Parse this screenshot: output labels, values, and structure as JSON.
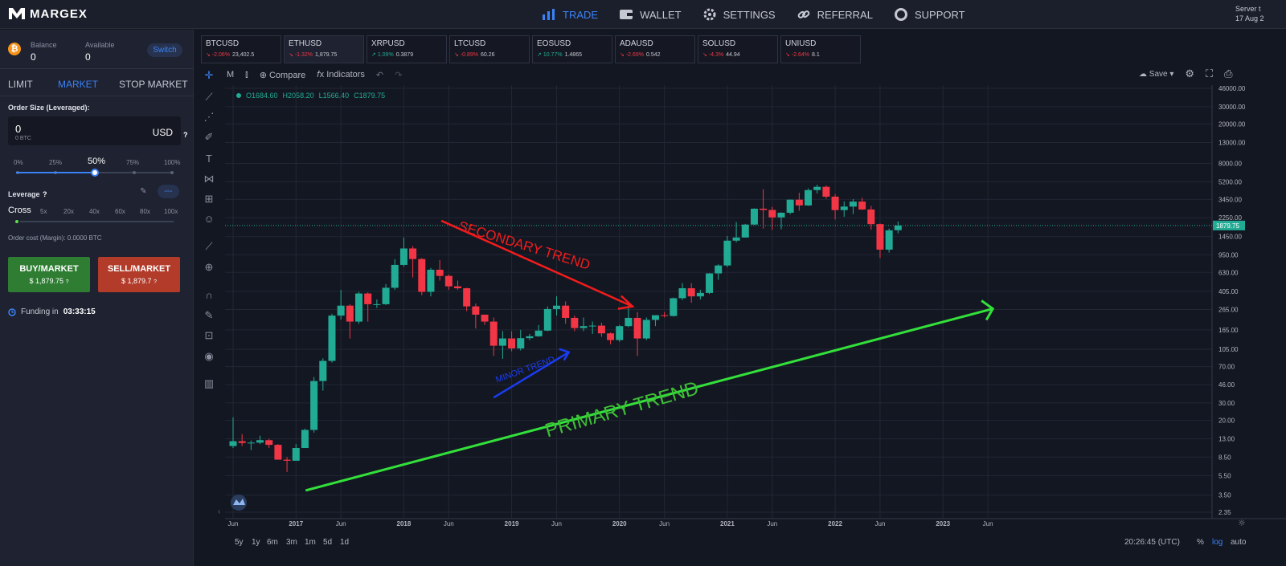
{
  "brand": {
    "name": "MARGEX"
  },
  "nav": [
    {
      "label": "TRADE",
      "icon": "bar-chart-icon",
      "active": true
    },
    {
      "label": "WALLET",
      "icon": "wallet-icon"
    },
    {
      "label": "SETTINGS",
      "icon": "gear-icon"
    },
    {
      "label": "REFERRAL",
      "icon": "link-icon"
    },
    {
      "label": "SUPPORT",
      "icon": "lifebuoy-icon"
    }
  ],
  "server": {
    "label": "Server t",
    "date": "17 Aug 2"
  },
  "account": {
    "balance_label": "Balance",
    "balance": "0",
    "available_label": "Available",
    "available": "0",
    "switch_label": "Switch"
  },
  "order_types": [
    "LIMIT",
    "MARKET",
    "STOP MARKET"
  ],
  "order_size": {
    "label": "Order Size (Leveraged):",
    "value": "0",
    "sub": "0 BTC",
    "currency": "USD",
    "help": "?"
  },
  "percent_options": [
    "0%",
    "25%",
    "50%",
    "75%",
    "100%"
  ],
  "percent_selected": "50%",
  "percent_value": 0.5,
  "leverage": {
    "label": "Leverage",
    "help": "?",
    "options": [
      "Cross",
      "5x",
      "20x",
      "40x",
      "60x",
      "80x",
      "100x"
    ],
    "selected": "Cross"
  },
  "order_cost": "Order cost (Margin): 0.0000 BTC",
  "buy": {
    "label": "BUY/MARKET",
    "price": "$ 1,879.75",
    "help": "?"
  },
  "sell": {
    "label": "SELL/MARKET",
    "price": "$ 1,879.7",
    "help": "?"
  },
  "funding": {
    "label": "Funding in",
    "time": "03:33:15"
  },
  "tickers": [
    {
      "symbol": "BTCUSD",
      "change": "-2.06%",
      "price": "23,402.5",
      "dir": "down"
    },
    {
      "symbol": "ETHUSD",
      "change": "-1.32%",
      "price": "1,879.75",
      "dir": "down",
      "active": true
    },
    {
      "symbol": "XRPUSD",
      "change": "1.09%",
      "price": "0.3879",
      "dir": "up"
    },
    {
      "symbol": "LTCUSD",
      "change": "-0.89%",
      "price": "60.26",
      "dir": "down"
    },
    {
      "symbol": "EOSUSD",
      "change": "10.77%",
      "price": "1.4865",
      "dir": "up"
    },
    {
      "symbol": "ADAUSD",
      "change": "-2.69%",
      "price": "0.542",
      "dir": "down"
    },
    {
      "symbol": "SOLUSD",
      "change": "-4.3%",
      "price": "44.94",
      "dir": "down"
    },
    {
      "symbol": "UNIUSD",
      "change": "-2.64%",
      "price": "8.1",
      "dir": "down"
    }
  ],
  "chart_toolbar": {
    "interval": "M",
    "compare": "Compare",
    "indicators": "Indicators",
    "save": "Save"
  },
  "ohlc": {
    "o": "O1684.60",
    "h": "H2058.20",
    "l": "L1566.40",
    "c": "C1879.75"
  },
  "ranges": [
    "5y",
    "1y",
    "6m",
    "3m",
    "1m",
    "5d",
    "1d"
  ],
  "clock": "20:26:45 (UTC)",
  "scale_opts": [
    "%",
    "log",
    "auto"
  ],
  "colors": {
    "up": "#22ab94",
    "down": "#f23645",
    "accent": "#3b82f6",
    "primary": "#33e03a",
    "secondary": "#f21c1c",
    "minor": "#1b3cf0"
  },
  "chart_data": {
    "type": "candlestick",
    "symbol": "ETHUSD",
    "interval": "1M",
    "scale": "log",
    "last_price": "1879.75",
    "y_ticks": [
      "46000.00",
      "30000.00",
      "20000.00",
      "13000.00",
      "8000.00",
      "5200.00",
      "3450.00",
      "2250.00",
      "1450.00",
      "950.00",
      "630.00",
      "405.00",
      "265.00",
      "165.00",
      "105.00",
      "70.00",
      "46.00",
      "30.00",
      "20.00",
      "13.00",
      "8.50",
      "5.50",
      "3.50",
      "2.35"
    ],
    "x_ticks": [
      {
        "label": "Jun",
        "x": "2016-06"
      },
      {
        "label": "2017",
        "x": "2017-01"
      },
      {
        "label": "Jun",
        "x": "2017-06"
      },
      {
        "label": "2018",
        "x": "2018-01"
      },
      {
        "label": "Jun",
        "x": "2018-06"
      },
      {
        "label": "2019",
        "x": "2019-01"
      },
      {
        "label": "Jun",
        "x": "2019-06"
      },
      {
        "label": "2020",
        "x": "2020-01"
      },
      {
        "label": "Jun",
        "x": "2020-06"
      },
      {
        "label": "2021",
        "x": "2021-01"
      },
      {
        "label": "Jun",
        "x": "2021-06"
      },
      {
        "label": "2022",
        "x": "2022-01"
      },
      {
        "label": "Jun",
        "x": "2022-06"
      },
      {
        "label": "2023",
        "x": "2023-01"
      },
      {
        "label": "Jun",
        "x": "2023-06"
      }
    ],
    "candles": [
      {
        "d": "2016-06",
        "o": 11.0,
        "h": 21.5,
        "l": 10.5,
        "c": 12.3
      },
      {
        "d": "2016-07",
        "o": 12.3,
        "h": 14.5,
        "l": 11.0,
        "c": 11.8
      },
      {
        "d": "2016-08",
        "o": 11.8,
        "h": 12.5,
        "l": 10.0,
        "c": 11.9
      },
      {
        "d": "2016-09",
        "o": 11.9,
        "h": 14.0,
        "l": 11.5,
        "c": 12.6
      },
      {
        "d": "2016-10",
        "o": 12.6,
        "h": 13.0,
        "l": 10.5,
        "c": 11.3
      },
      {
        "d": "2016-11",
        "o": 11.3,
        "h": 11.5,
        "l": 8.0,
        "c": 8.0
      },
      {
        "d": "2016-12",
        "o": 8.0,
        "h": 8.5,
        "l": 6.0,
        "c": 7.8
      },
      {
        "d": "2017-01",
        "o": 7.8,
        "h": 11.5,
        "l": 7.8,
        "c": 10.5
      },
      {
        "d": "2017-02",
        "o": 10.5,
        "h": 16.5,
        "l": 10.5,
        "c": 16.0
      },
      {
        "d": "2017-03",
        "o": 16.0,
        "h": 55.0,
        "l": 15.0,
        "c": 50.0
      },
      {
        "d": "2017-04",
        "o": 50.0,
        "h": 85.0,
        "l": 40.0,
        "c": 80.0
      },
      {
        "d": "2017-05",
        "o": 80.0,
        "h": 240.0,
        "l": 77.0,
        "c": 230.0
      },
      {
        "d": "2017-06",
        "o": 230.0,
        "h": 420.0,
        "l": 210.0,
        "c": 290.0
      },
      {
        "d": "2017-07",
        "o": 290.0,
        "h": 300.0,
        "l": 135.0,
        "c": 200.0
      },
      {
        "d": "2017-08",
        "o": 200.0,
        "h": 400.0,
        "l": 190.0,
        "c": 385.0
      },
      {
        "d": "2017-09",
        "o": 385.0,
        "h": 395.0,
        "l": 200.0,
        "c": 300.0
      },
      {
        "d": "2017-10",
        "o": 300.0,
        "h": 335.0,
        "l": 275.0,
        "c": 300.0
      },
      {
        "d": "2017-11",
        "o": 300.0,
        "h": 480.0,
        "l": 295.0,
        "c": 440.0
      },
      {
        "d": "2017-12",
        "o": 440.0,
        "h": 860.0,
        "l": 420.0,
        "c": 750.0
      },
      {
        "d": "2018-01",
        "o": 750.0,
        "h": 1420.0,
        "l": 720.0,
        "c": 1100.0
      },
      {
        "d": "2018-02",
        "o": 1100.0,
        "h": 1160.0,
        "l": 560.0,
        "c": 860.0
      },
      {
        "d": "2018-03",
        "o": 860.0,
        "h": 880.0,
        "l": 370.0,
        "c": 400.0
      },
      {
        "d": "2018-04",
        "o": 400.0,
        "h": 700.0,
        "l": 360.0,
        "c": 670.0
      },
      {
        "d": "2018-05",
        "o": 670.0,
        "h": 840.0,
        "l": 520.0,
        "c": 580.0
      },
      {
        "d": "2018-06",
        "o": 580.0,
        "h": 600.0,
        "l": 420.0,
        "c": 455.0
      },
      {
        "d": "2018-07",
        "o": 455.0,
        "h": 520.0,
        "l": 420.0,
        "c": 435.0
      },
      {
        "d": "2018-08",
        "o": 435.0,
        "h": 440.0,
        "l": 255.0,
        "c": 285.0
      },
      {
        "d": "2018-09",
        "o": 285.0,
        "h": 305.0,
        "l": 170.0,
        "c": 235.0
      },
      {
        "d": "2018-10",
        "o": 235.0,
        "h": 235.0,
        "l": 185.0,
        "c": 200.0
      },
      {
        "d": "2018-11",
        "o": 200.0,
        "h": 220.0,
        "l": 90.0,
        "c": 114.0
      },
      {
        "d": "2018-12",
        "o": 114.0,
        "h": 160.0,
        "l": 84.0,
        "c": 135.0
      },
      {
        "d": "2019-01",
        "o": 135.0,
        "h": 160.0,
        "l": 100.0,
        "c": 107.0
      },
      {
        "d": "2019-02",
        "o": 107.0,
        "h": 165.0,
        "l": 102.0,
        "c": 136.0
      },
      {
        "d": "2019-03",
        "o": 136.0,
        "h": 150.0,
        "l": 130.0,
        "c": 142.0
      },
      {
        "d": "2019-04",
        "o": 142.0,
        "h": 185.0,
        "l": 140.0,
        "c": 162.0
      },
      {
        "d": "2019-05",
        "o": 162.0,
        "h": 285.0,
        "l": 160.0,
        "c": 268.0
      },
      {
        "d": "2019-06",
        "o": 268.0,
        "h": 360.0,
        "l": 230.0,
        "c": 290.0
      },
      {
        "d": "2019-07",
        "o": 290.0,
        "h": 320.0,
        "l": 190.0,
        "c": 218.0
      },
      {
        "d": "2019-08",
        "o": 218.0,
        "h": 230.0,
        "l": 160.0,
        "c": 172.0
      },
      {
        "d": "2019-09",
        "o": 172.0,
        "h": 220.0,
        "l": 160.0,
        "c": 180.0
      },
      {
        "d": "2019-10",
        "o": 180.0,
        "h": 200.0,
        "l": 150.0,
        "c": 182.0
      },
      {
        "d": "2019-11",
        "o": 182.0,
        "h": 195.0,
        "l": 140.0,
        "c": 152.0
      },
      {
        "d": "2019-12",
        "o": 152.0,
        "h": 155.0,
        "l": 118.0,
        "c": 130.0
      },
      {
        "d": "2020-01",
        "o": 130.0,
        "h": 185.0,
        "l": 125.0,
        "c": 180.0
      },
      {
        "d": "2020-02",
        "o": 180.0,
        "h": 290.0,
        "l": 175.0,
        "c": 218.0
      },
      {
        "d": "2020-03",
        "o": 218.0,
        "h": 250.0,
        "l": 90.0,
        "c": 135.0
      },
      {
        "d": "2020-04",
        "o": 135.0,
        "h": 220.0,
        "l": 130.0,
        "c": 208.0
      },
      {
        "d": "2020-05",
        "o": 208.0,
        "h": 225.0,
        "l": 180.0,
        "c": 232.0
      },
      {
        "d": "2020-06",
        "o": 232.0,
        "h": 250.0,
        "l": 220.0,
        "c": 228.0
      },
      {
        "d": "2020-07",
        "o": 228.0,
        "h": 350.0,
        "l": 225.0,
        "c": 345.0
      },
      {
        "d": "2020-08",
        "o": 345.0,
        "h": 490.0,
        "l": 330.0,
        "c": 435.0
      },
      {
        "d": "2020-09",
        "o": 435.0,
        "h": 490.0,
        "l": 310.0,
        "c": 360.0
      },
      {
        "d": "2020-10",
        "o": 360.0,
        "h": 420.0,
        "l": 335.0,
        "c": 390.0
      },
      {
        "d": "2020-11",
        "o": 390.0,
        "h": 620.0,
        "l": 380.0,
        "c": 615.0
      },
      {
        "d": "2020-12",
        "o": 615.0,
        "h": 760.0,
        "l": 530.0,
        "c": 740.0
      },
      {
        "d": "2021-01",
        "o": 740.0,
        "h": 1470.0,
        "l": 710.0,
        "c": 1320.0
      },
      {
        "d": "2021-02",
        "o": 1320.0,
        "h": 2040.0,
        "l": 1270.0,
        "c": 1420.0
      },
      {
        "d": "2021-03",
        "o": 1420.0,
        "h": 1950.0,
        "l": 1420.0,
        "c": 1920.0
      },
      {
        "d": "2021-04",
        "o": 1920.0,
        "h": 2800.0,
        "l": 1900.0,
        "c": 2780.0
      },
      {
        "d": "2021-05",
        "o": 2780.0,
        "h": 4380.0,
        "l": 1750.0,
        "c": 2700.0
      },
      {
        "d": "2021-06",
        "o": 2700.0,
        "h": 2900.0,
        "l": 1700.0,
        "c": 2270.0
      },
      {
        "d": "2021-07",
        "o": 2270.0,
        "h": 2550.0,
        "l": 1720.0,
        "c": 2530.0
      },
      {
        "d": "2021-08",
        "o": 2530.0,
        "h": 3450.0,
        "l": 2450.0,
        "c": 3430.0
      },
      {
        "d": "2021-09",
        "o": 3430.0,
        "h": 4030.0,
        "l": 2650.0,
        "c": 3000.0
      },
      {
        "d": "2021-10",
        "o": 3000.0,
        "h": 4460.0,
        "l": 2970.0,
        "c": 4290.0
      },
      {
        "d": "2021-11",
        "o": 4290.0,
        "h": 4870.0,
        "l": 3960.0,
        "c": 4630.0
      },
      {
        "d": "2021-12",
        "o": 4630.0,
        "h": 4780.0,
        "l": 3500.0,
        "c": 3680.0
      },
      {
        "d": "2022-01",
        "o": 3680.0,
        "h": 3900.0,
        "l": 2160.0,
        "c": 2690.0
      },
      {
        "d": "2022-02",
        "o": 2690.0,
        "h": 3290.0,
        "l": 2300.0,
        "c": 2920.0
      },
      {
        "d": "2022-03",
        "o": 2920.0,
        "h": 3480.0,
        "l": 2450.0,
        "c": 3280.0
      },
      {
        "d": "2022-04",
        "o": 3280.0,
        "h": 3580.0,
        "l": 2700.0,
        "c": 2730.0
      },
      {
        "d": "2022-05",
        "o": 2730.0,
        "h": 2970.0,
        "l": 1700.0,
        "c": 1940.0
      },
      {
        "d": "2022-06",
        "o": 1940.0,
        "h": 1970.0,
        "l": 880.0,
        "c": 1070.0
      },
      {
        "d": "2022-07",
        "o": 1070.0,
        "h": 1750.0,
        "l": 1000.0,
        "c": 1680.0
      },
      {
        "d": "2022-08",
        "o": 1684.6,
        "h": 2058.2,
        "l": 1566.4,
        "c": 1879.75
      }
    ],
    "annotations": [
      {
        "text": "SECONDARY TREND",
        "color": "#f21c1c"
      },
      {
        "text": "MINOR TREND",
        "color": "#1b3cf0"
      },
      {
        "text": "PRIMARY TREND",
        "color": "#33e03a"
      }
    ]
  }
}
